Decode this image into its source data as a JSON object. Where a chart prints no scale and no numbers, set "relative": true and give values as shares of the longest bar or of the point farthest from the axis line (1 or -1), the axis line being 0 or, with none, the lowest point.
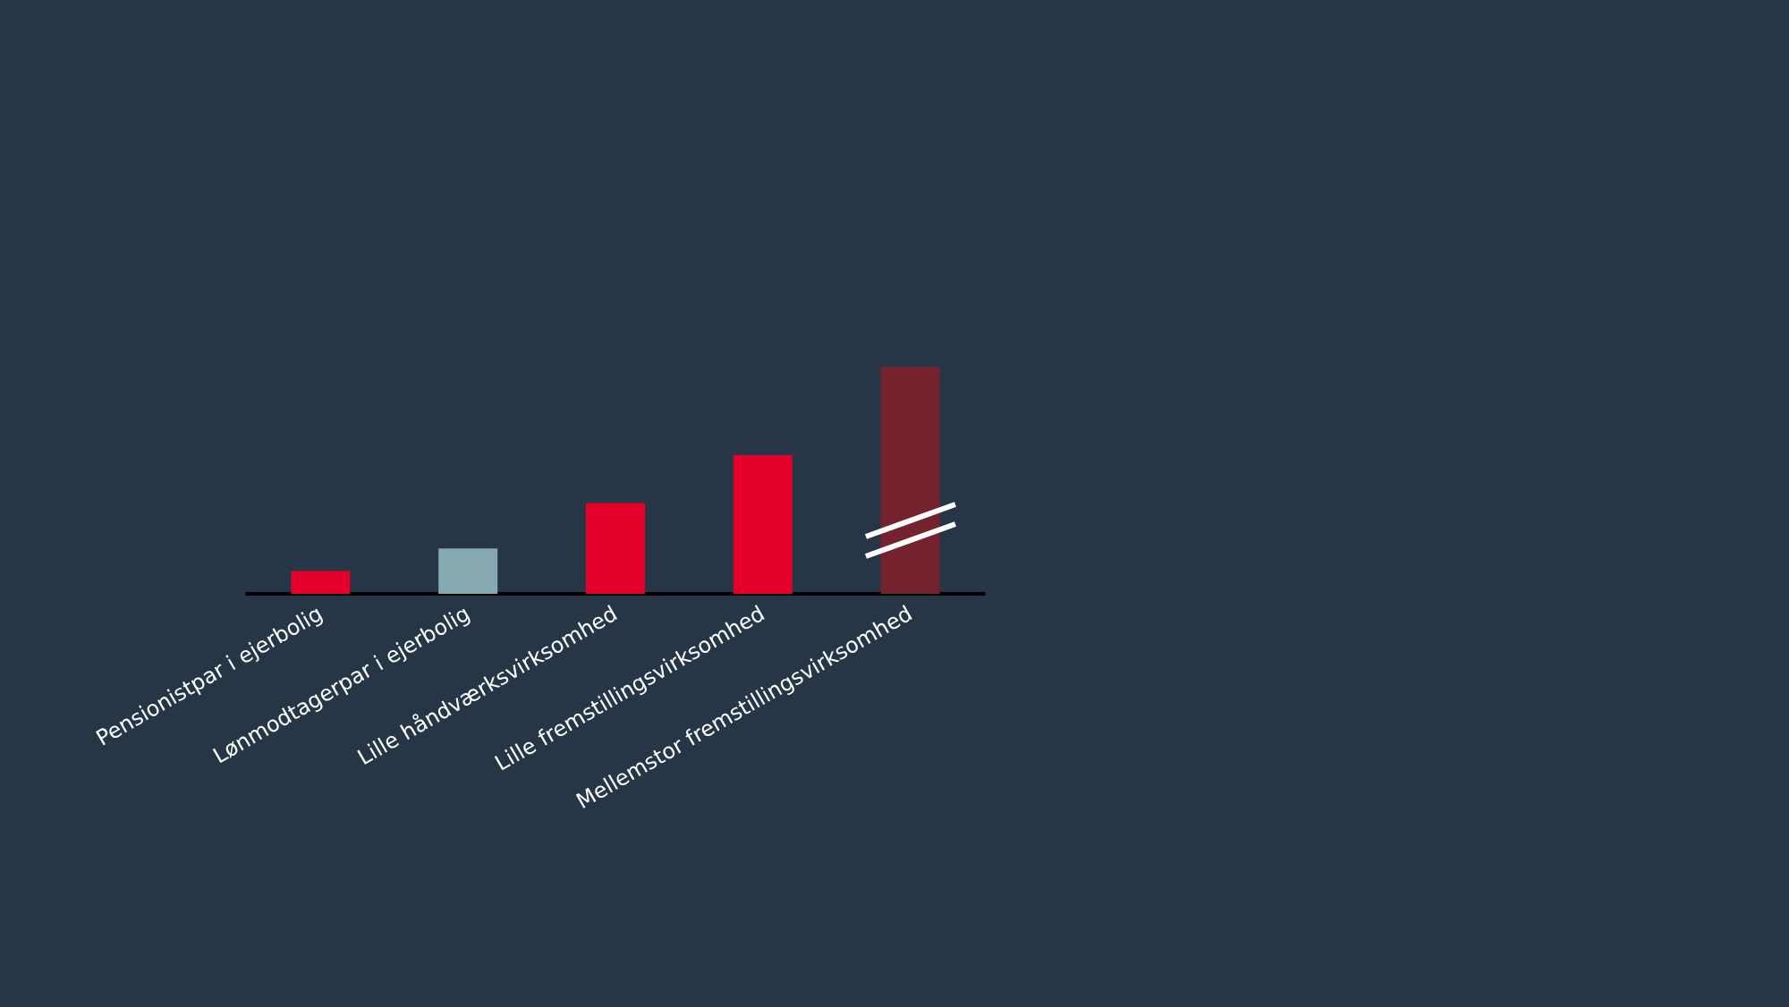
{
  "chart_data": {
    "type": "bar",
    "relative": true,
    "categories": [
      "Pensionistpar i ejerbolig",
      "Lønmodtagerpar i ejerbolig",
      "Lille håndværksvirksomhed",
      "Lille fremstillingsvirksomhed",
      "Mellemstor fremstillingsvirksomhed"
    ],
    "values": [
      0.1,
      0.2,
      0.4,
      0.61,
      1
    ],
    "colors": [
      "#e4002b",
      "#84a9b0",
      "#e4002b",
      "#e4002b",
      "#75222f"
    ]
  }
}
